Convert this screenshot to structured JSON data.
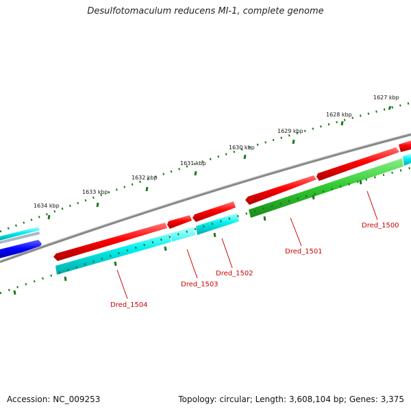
{
  "title": "Desulfotomaculum reducens MI-1, complete genome",
  "footer": {
    "accession": "Accession: NC_009253",
    "summary": "Topology: circular; Length: 3,608,104 bp; Genes: 3,375"
  },
  "ruler": {
    "ticks": [
      "1627 kbp",
      "1628 kbp",
      "1629 kbp",
      "1630 kbp",
      "1631 kbp",
      "1632 kbp",
      "1633 kbp",
      "1634 kbp"
    ]
  },
  "genes": {
    "labels": [
      "Dred_1500",
      "Dred_1501",
      "Dred_1502",
      "Dred_1503",
      "Dred_1504"
    ]
  },
  "colors": {
    "forward_gene": "#ff0000",
    "cds_cyan": "#00ffff",
    "cds_green": "#33cc33",
    "backbone": "#888888",
    "tick_green": "#1a7a1a",
    "label_red": "#cc0000",
    "blue_feature": "#0000ff"
  }
}
